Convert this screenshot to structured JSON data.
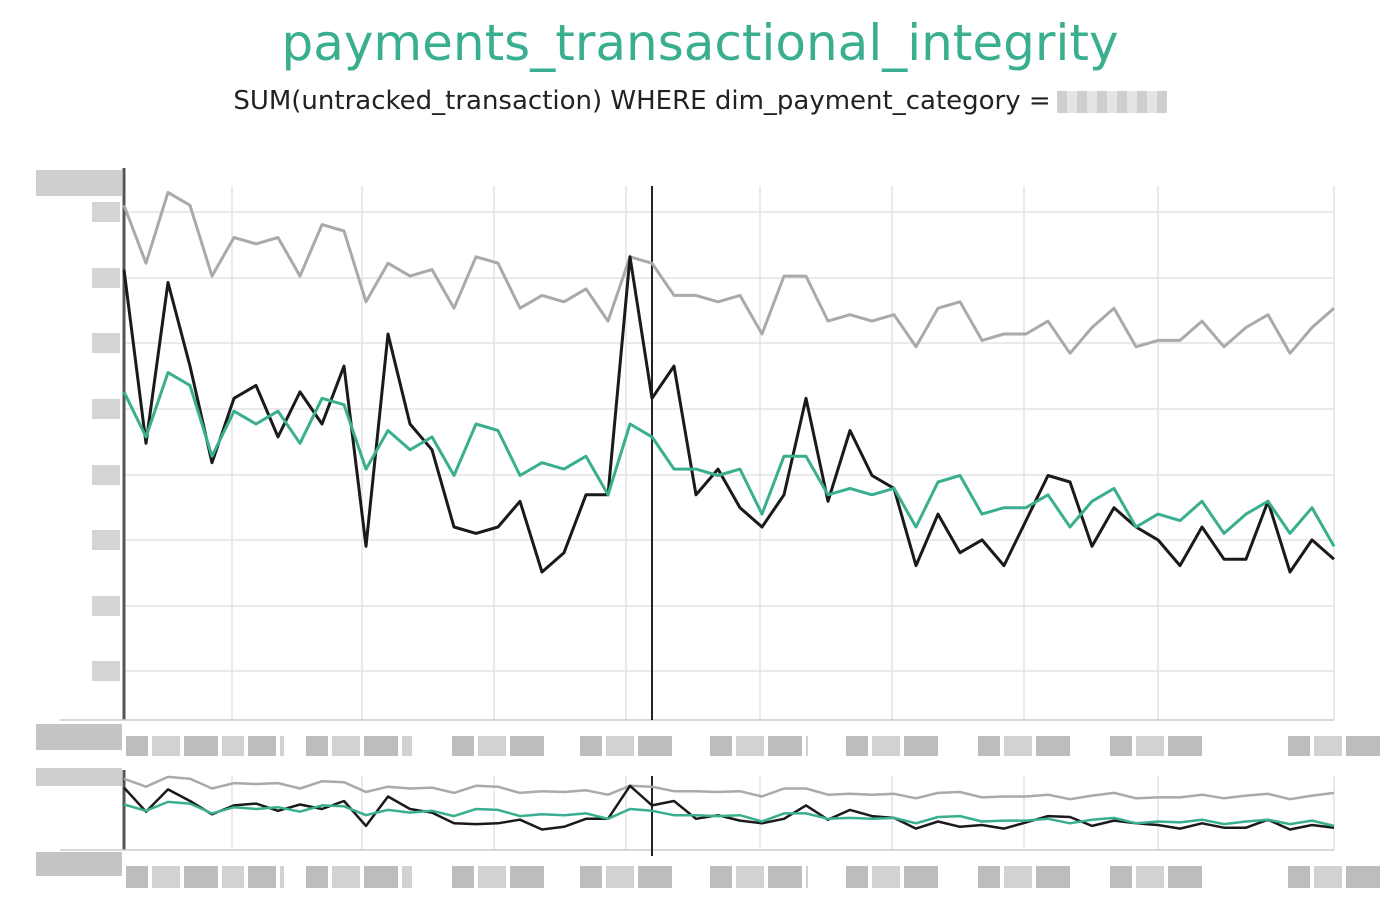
{
  "title": "payments_transactional_integrity",
  "subtitle": "SUM(untracked_transaction) WHERE dim_payment_category =",
  "colors": {
    "title": "#3aaf8f",
    "series_gray": "#aaaaaa",
    "series_black": "#1a1a1a",
    "series_teal": "#3aaf8f",
    "grid": "#e3e3e3"
  },
  "chart_data": {
    "type": "line",
    "title": "payments_transactional_integrity",
    "subtitle": "SUM(untracked_transaction) WHERE dim_payment_category =",
    "tick_labels_redacted": true,
    "grid": true,
    "ylim": [
      0,
      8.3
    ],
    "x": [
      0,
      1,
      2,
      3,
      4,
      5,
      6,
      7,
      8,
      9,
      10,
      11,
      12,
      13,
      14,
      15,
      16,
      17,
      18,
      19,
      20,
      21,
      22,
      23,
      24,
      25,
      26,
      27,
      28,
      29,
      30,
      31,
      32,
      33,
      34,
      35,
      36,
      37,
      38,
      39,
      40,
      41,
      42,
      43,
      44,
      45,
      46,
      47,
      48,
      49,
      50,
      51,
      52,
      53,
      54,
      55
    ],
    "marker_index": 24,
    "series": [
      {
        "color": "gray",
        "values": [
          8.0,
          7.1,
          8.2,
          8.0,
          6.9,
          7.5,
          7.4,
          7.5,
          6.9,
          7.7,
          7.6,
          6.5,
          7.1,
          6.9,
          7.0,
          6.4,
          7.2,
          7.1,
          6.4,
          6.6,
          6.5,
          6.7,
          6.2,
          7.2,
          7.1,
          6.6,
          6.6,
          6.5,
          6.6,
          6.0,
          6.9,
          6.9,
          6.2,
          6.3,
          6.2,
          6.3,
          5.8,
          6.4,
          6.5,
          5.9,
          6.0,
          6.0,
          6.2,
          5.7,
          6.1,
          6.4,
          5.8,
          5.9,
          5.9,
          6.2,
          5.8,
          6.1,
          6.3,
          5.7,
          6.1,
          6.4
        ]
      },
      {
        "color": "black",
        "values": [
          7.0,
          4.3,
          6.8,
          5.5,
          4.0,
          5.0,
          5.2,
          4.4,
          5.1,
          4.6,
          5.5,
          2.7,
          6.0,
          4.6,
          4.2,
          3.0,
          2.9,
          3.0,
          3.4,
          2.3,
          2.6,
          3.5,
          3.5,
          7.2,
          5.0,
          5.5,
          3.5,
          3.9,
          3.3,
          3.0,
          3.5,
          5.0,
          3.4,
          4.5,
          3.8,
          3.6,
          2.4,
          3.2,
          2.6,
          2.8,
          2.4,
          3.1,
          3.8,
          3.7,
          2.7,
          3.3,
          3.0,
          2.8,
          2.4,
          3.0,
          2.5,
          2.5,
          3.4,
          2.3,
          2.8,
          2.5
        ]
      },
      {
        "color": "teal",
        "values": [
          5.1,
          4.4,
          5.4,
          5.2,
          4.1,
          4.8,
          4.6,
          4.8,
          4.3,
          5.0,
          4.9,
          3.9,
          4.5,
          4.2,
          4.4,
          3.8,
          4.6,
          4.5,
          3.8,
          4.0,
          3.9,
          4.1,
          3.5,
          4.6,
          4.4,
          3.9,
          3.9,
          3.8,
          3.9,
          3.2,
          4.1,
          4.1,
          3.5,
          3.6,
          3.5,
          3.6,
          3.0,
          3.7,
          3.8,
          3.2,
          3.3,
          3.3,
          3.5,
          3.0,
          3.4,
          3.6,
          3.0,
          3.2,
          3.1,
          3.4,
          2.9,
          3.2,
          3.4,
          2.9,
          3.3,
          2.7
        ]
      }
    ]
  }
}
